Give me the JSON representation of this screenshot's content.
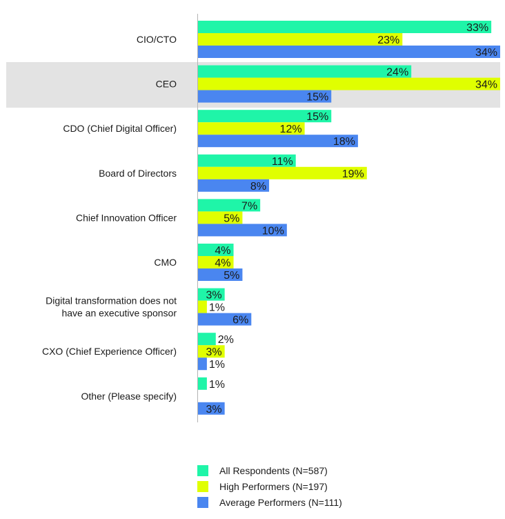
{
  "chart_data": {
    "type": "bar",
    "orientation": "horizontal",
    "categories": [
      "CIO/CTO",
      "CEO",
      "CDO (Chief Digital Officer)",
      "Board of Directors",
      "Chief Innovation Officer",
      "CMO",
      "Digital transformation does not have an executive sponsor",
      "CXO (Chief Experience Officer)",
      "Other (Please specify)"
    ],
    "category_lines": [
      [
        "CIO/CTO"
      ],
      [
        "CEO"
      ],
      [
        "CDO (Chief Digital Officer)"
      ],
      [
        "Board of Directors"
      ],
      [
        "Chief Innovation Officer"
      ],
      [
        "CMO"
      ],
      [
        "Digital transformation does not",
        "have an executive sponsor"
      ],
      [
        "CXO (Chief Experience Officer)"
      ],
      [
        "Other (Please specify)"
      ]
    ],
    "highlighted_category": "CEO",
    "series": [
      {
        "name": "All Respondents (N=587)",
        "color": "#1ff5a8",
        "values": [
          33,
          24,
          15,
          11,
          7,
          4,
          3,
          2,
          1
        ]
      },
      {
        "name": "High Performers (N=197)",
        "color": "#e0ff00",
        "values": [
          23,
          34,
          12,
          19,
          5,
          4,
          1,
          3,
          null
        ]
      },
      {
        "name": "Average Performers (N=111)",
        "color": "#4a86f0",
        "values": [
          34,
          15,
          18,
          8,
          10,
          5,
          6,
          1,
          3
        ]
      }
    ],
    "value_suffix": "%",
    "xlim": [
      0,
      34
    ],
    "title": "",
    "xlabel": "",
    "ylabel": "",
    "legend_position": "bottom"
  }
}
